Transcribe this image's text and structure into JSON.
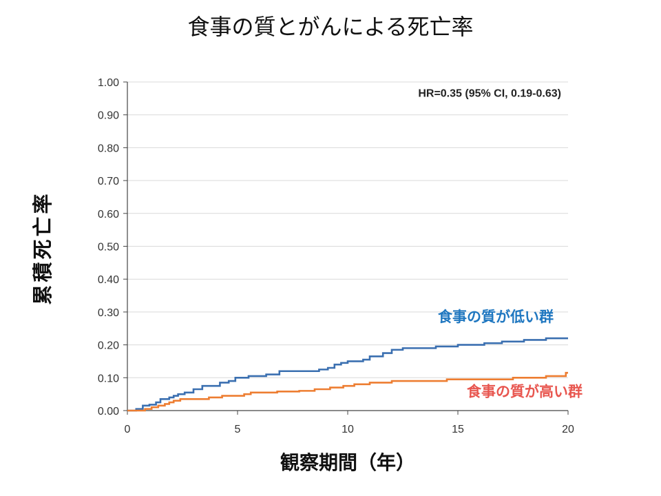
{
  "chart_data": {
    "type": "line",
    "title": "食事の質とがんによる死亡率",
    "xlabel": "観察期間（年）",
    "ylabel": "累積死亡率",
    "xlim": [
      0,
      20
    ],
    "ylim": [
      0,
      1.0
    ],
    "x_ticks": [
      "0",
      "5",
      "10",
      "15",
      "20"
    ],
    "y_ticks": [
      "0.00",
      "0.10",
      "0.20",
      "0.30",
      "0.40",
      "0.50",
      "0.60",
      "0.70",
      "0.80",
      "0.90",
      "1.00"
    ],
    "grid": "horizontal",
    "annotation": "HR=0.35 (95% CI, 0.19-0.63)",
    "series": [
      {
        "name": "食事の質が低い群",
        "color": "#3a6fb0",
        "label_color": "#1f77c0",
        "points": [
          [
            0,
            0
          ],
          [
            0.4,
            0.005
          ],
          [
            0.7,
            0.015
          ],
          [
            1.0,
            0.018
          ],
          [
            1.3,
            0.025
          ],
          [
            1.5,
            0.035
          ],
          [
            1.9,
            0.04
          ],
          [
            2.1,
            0.045
          ],
          [
            2.3,
            0.05
          ],
          [
            2.6,
            0.055
          ],
          [
            3.0,
            0.065
          ],
          [
            3.4,
            0.075
          ],
          [
            4.2,
            0.085
          ],
          [
            4.6,
            0.09
          ],
          [
            4.9,
            0.1
          ],
          [
            5.5,
            0.105
          ],
          [
            6.3,
            0.11
          ],
          [
            6.9,
            0.12
          ],
          [
            8.7,
            0.125
          ],
          [
            9.1,
            0.13
          ],
          [
            9.4,
            0.14
          ],
          [
            9.7,
            0.145
          ],
          [
            10.0,
            0.15
          ],
          [
            10.7,
            0.155
          ],
          [
            11.0,
            0.165
          ],
          [
            11.6,
            0.175
          ],
          [
            12.0,
            0.185
          ],
          [
            12.5,
            0.19
          ],
          [
            14.0,
            0.195
          ],
          [
            15.0,
            0.2
          ],
          [
            16.2,
            0.205
          ],
          [
            17.0,
            0.21
          ],
          [
            18.0,
            0.215
          ],
          [
            19.0,
            0.22
          ],
          [
            20.0,
            0.22
          ]
        ]
      },
      {
        "name": "食事の質が高い群",
        "color": "#ed7d31",
        "label_color": "#e8564f",
        "points": [
          [
            0,
            0
          ],
          [
            0.8,
            0.005
          ],
          [
            1.1,
            0.01
          ],
          [
            1.4,
            0.015
          ],
          [
            1.7,
            0.02
          ],
          [
            1.9,
            0.025
          ],
          [
            2.1,
            0.03
          ],
          [
            2.4,
            0.035
          ],
          [
            3.7,
            0.04
          ],
          [
            4.3,
            0.045
          ],
          [
            5.3,
            0.05
          ],
          [
            5.6,
            0.055
          ],
          [
            6.8,
            0.058
          ],
          [
            7.8,
            0.06
          ],
          [
            8.5,
            0.065
          ],
          [
            9.2,
            0.07
          ],
          [
            9.8,
            0.075
          ],
          [
            10.3,
            0.08
          ],
          [
            11.0,
            0.085
          ],
          [
            12.0,
            0.09
          ],
          [
            14.5,
            0.095
          ],
          [
            17.5,
            0.1
          ],
          [
            19.0,
            0.105
          ],
          [
            19.9,
            0.115
          ],
          [
            20.0,
            0.115
          ]
        ]
      }
    ]
  }
}
